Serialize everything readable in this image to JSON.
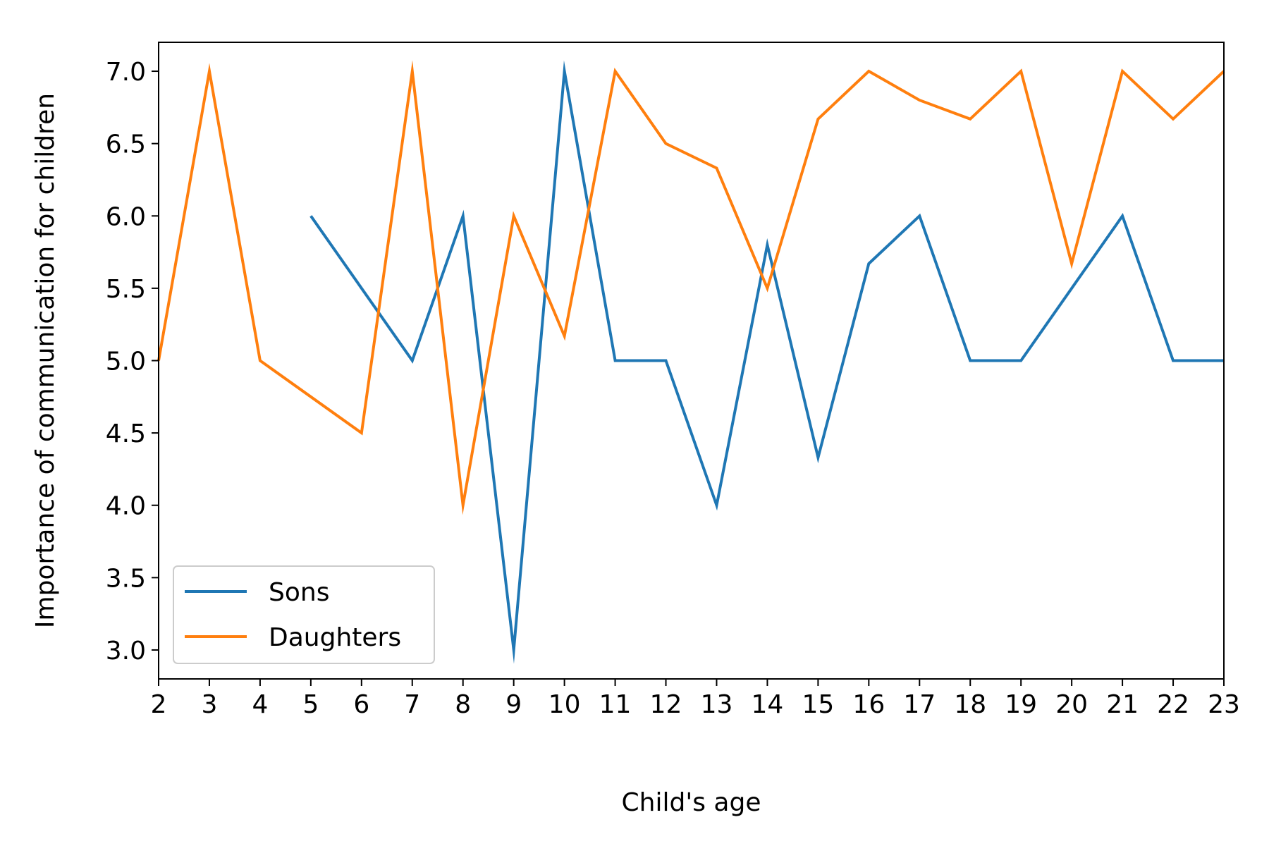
{
  "chart_data": {
    "type": "line",
    "title": "",
    "xlabel": "Child's age",
    "ylabel": "Importance of communication for children",
    "xlim": [
      2,
      23
    ],
    "ylim": [
      2.8,
      7.2
    ],
    "xticks": [
      2,
      3,
      4,
      5,
      6,
      7,
      8,
      9,
      10,
      11,
      12,
      13,
      14,
      15,
      16,
      17,
      18,
      19,
      20,
      21,
      22,
      23
    ],
    "yticks": [
      3.0,
      3.5,
      4.0,
      4.5,
      5.0,
      5.5,
      6.0,
      6.5,
      7.0
    ],
    "ytick_labels": [
      "3.0",
      "3.5",
      "4.0",
      "4.5",
      "5.0",
      "5.5",
      "6.0",
      "6.5",
      "7.0"
    ],
    "grid": false,
    "legend_position": "lower-left",
    "series": [
      {
        "name": "Sons",
        "color": "#1f77b4",
        "x": [
          5,
          7,
          8,
          9,
          10,
          11,
          12,
          13,
          14,
          15,
          16,
          17,
          18,
          19,
          21,
          22,
          23
        ],
        "y": [
          6.0,
          5.0,
          6.0,
          3.0,
          7.0,
          5.0,
          5.0,
          4.0,
          5.8,
          4.33,
          5.67,
          6.0,
          5.0,
          5.0,
          6.0,
          5.0,
          5.0
        ]
      },
      {
        "name": "Daughters",
        "color": "#ff7f0e",
        "x": [
          2,
          3,
          4,
          6,
          7,
          8,
          9,
          10,
          11,
          12,
          13,
          14,
          15,
          16,
          17,
          18,
          19,
          20,
          21,
          22,
          23
        ],
        "y": [
          5.0,
          7.0,
          5.0,
          4.5,
          7.0,
          4.0,
          6.0,
          5.17,
          7.0,
          6.5,
          6.33,
          5.5,
          6.67,
          7.0,
          6.8,
          6.67,
          7.0,
          5.67,
          7.0,
          6.67,
          7.0
        ]
      }
    ]
  }
}
